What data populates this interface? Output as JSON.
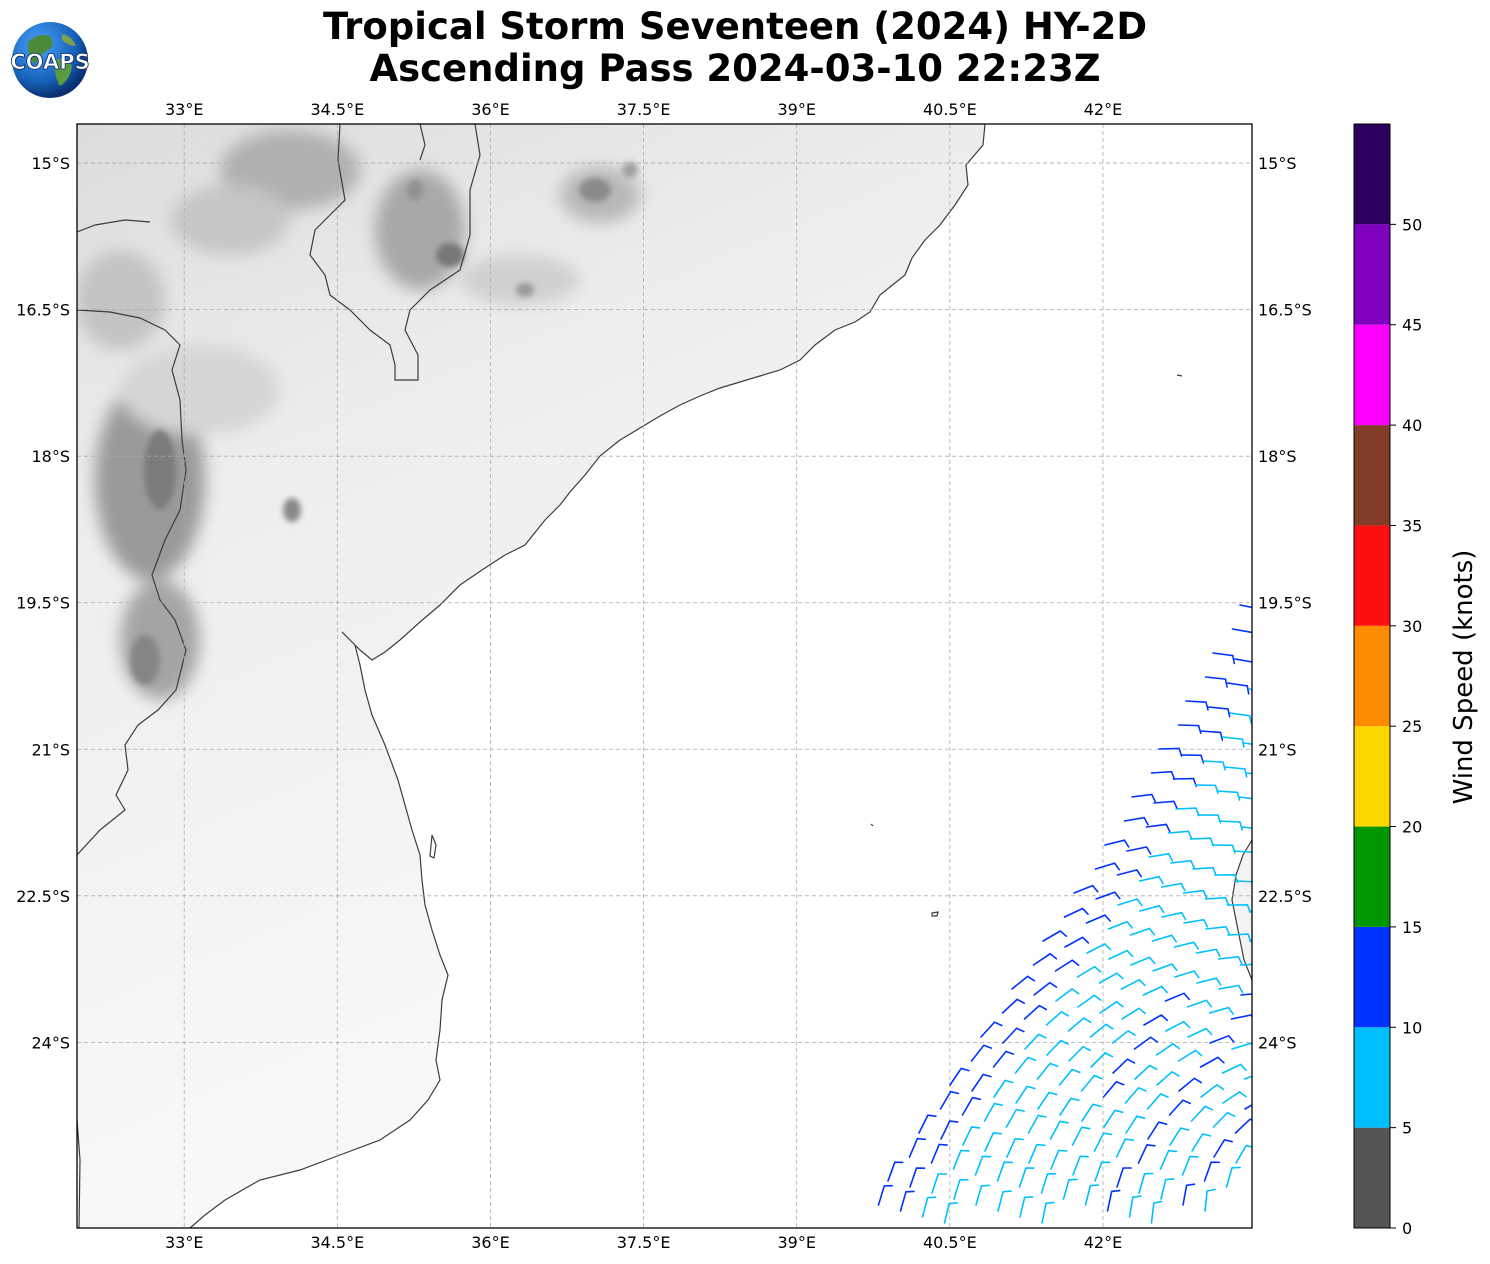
{
  "header": {
    "title_line1": "Tropical Storm Seventeen (2024) HY-2D",
    "title_line2": "Ascending Pass 2024-03-10 22:23Z",
    "logo_text": "COAPS"
  },
  "map": {
    "lon_range": [
      31.95,
      43.46
    ],
    "lat_range": [
      -25.9,
      -14.6
    ],
    "lon_ticks": [
      "33°E",
      "34.5°E",
      "36°E",
      "37.5°E",
      "39°E",
      "40.5°E",
      "42°E"
    ],
    "lat_ticks": [
      "15°S",
      "16.5°S",
      "18°S",
      "19.5°S",
      "21°S",
      "22.5°S",
      "24°S"
    ],
    "gridlines": true,
    "background": "grayscale topography over land, white ocean"
  },
  "colorbar": {
    "label": "Wind Speed (knots)",
    "tick_labels": [
      "0",
      "5",
      "10",
      "15",
      "20",
      "25",
      "30",
      "35",
      "40",
      "45",
      "50"
    ],
    "bins": [
      {
        "from": 0,
        "to": 5,
        "color": "#555555"
      },
      {
        "from": 5,
        "to": 10,
        "color": "#00bfff"
      },
      {
        "from": 10,
        "to": 15,
        "color": "#0033ff"
      },
      {
        "from": 15,
        "to": 20,
        "color": "#009600"
      },
      {
        "from": 20,
        "to": 25,
        "color": "#ffd700"
      },
      {
        "from": 25,
        "to": 30,
        "color": "#ff8c00"
      },
      {
        "from": 30,
        "to": 35,
        "color": "#ff1010"
      },
      {
        "from": 35,
        "to": 40,
        "color": "#823c28"
      },
      {
        "from": 40,
        "to": 45,
        "color": "#ff00ff"
      },
      {
        "from": 45,
        "to": 50,
        "color": "#8000c0"
      },
      {
        "from": 50,
        "to": 55,
        "color": "#2d0060"
      }
    ]
  },
  "wind_barbs": {
    "swath": "descending from top-right of plot toward bottom, roughly 41–43.5°E, 19.4–25.9°S",
    "colors": {
      "5-10 kt": "#00bfff",
      "10-15 kt": "#0033ff"
    }
  }
}
